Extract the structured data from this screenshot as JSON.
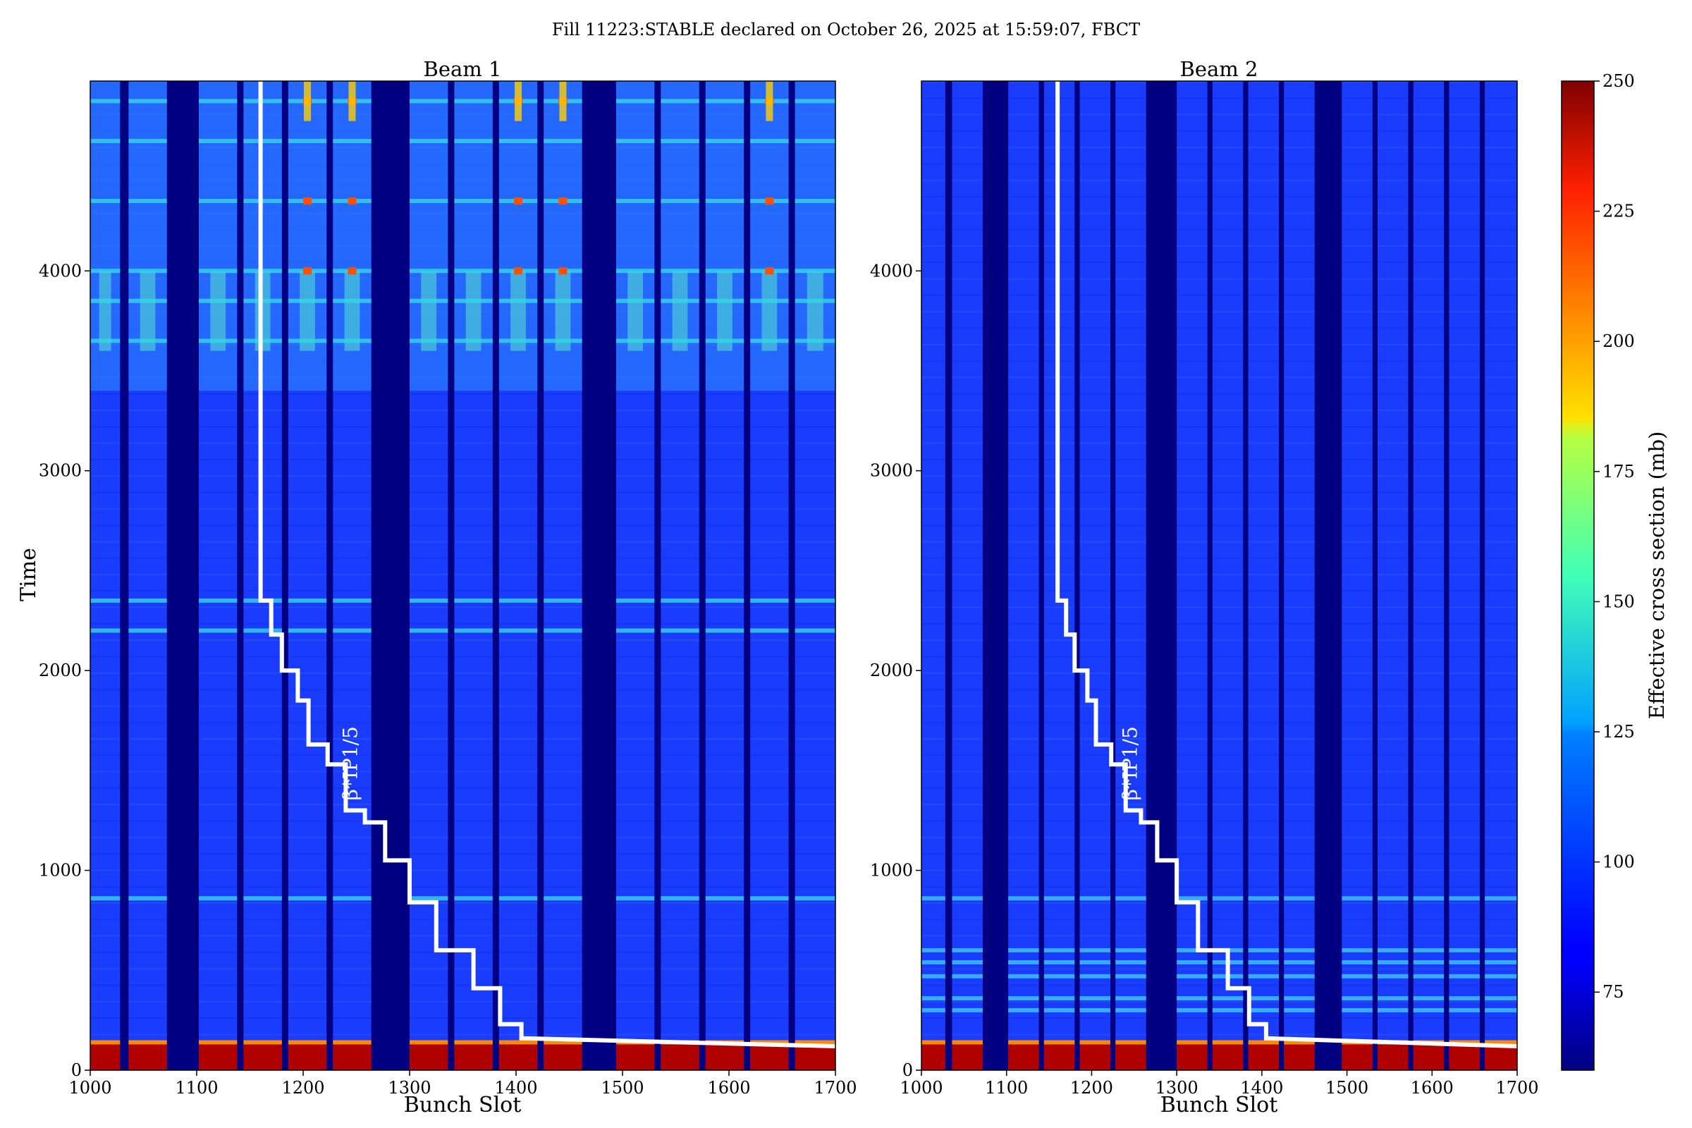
{
  "suptitle": "Fill 11223:STABLE declared on October 26, 2025 at 15:59:07, FBCT",
  "chart_data": [
    {
      "type": "heatmap",
      "title": "Beam 1",
      "xlabel": "Bunch Slot",
      "ylabel": "Time",
      "xlim": [
        1000,
        1700
      ],
      "ylim": [
        0,
        4950
      ],
      "xticks": [
        "1000",
        "1100",
        "1200",
        "1300",
        "1400",
        "1500",
        "1600",
        "1700"
      ],
      "yticks": [
        "0",
        "1000",
        "2000",
        "3000",
        "4000"
      ],
      "filled_trains": [
        [
          1000,
          1028
        ],
        [
          1036,
          1072
        ],
        [
          1102,
          1138
        ],
        [
          1144,
          1180
        ],
        [
          1186,
          1222
        ],
        [
          1228,
          1264
        ],
        [
          1300,
          1336
        ],
        [
          1342,
          1378
        ],
        [
          1384,
          1420
        ],
        [
          1426,
          1462
        ],
        [
          1494,
          1530
        ],
        [
          1536,
          1572
        ],
        [
          1578,
          1614
        ],
        [
          1620,
          1656
        ],
        [
          1662,
          1700
        ]
      ],
      "bright_bands": [
        860,
        2200,
        2350,
        3650,
        3850,
        4000,
        4350,
        4650,
        4850
      ],
      "hot_trains": [
        1186,
        1228,
        1384,
        1426,
        1620
      ],
      "annotation": "β*IP1/5",
      "beta_curve": {
        "x": [
          1160,
          1160,
          1170,
          1170,
          1180,
          1180,
          1195,
          1195,
          1205,
          1205,
          1223,
          1223,
          1240,
          1240,
          1258,
          1258,
          1277,
          1277,
          1300,
          1300,
          1325,
          1325,
          1360,
          1360,
          1385,
          1385,
          1405,
          1405,
          1700
        ],
        "y": [
          4950,
          2350,
          2350,
          2180,
          2180,
          2000,
          2000,
          1850,
          1850,
          1630,
          1630,
          1530,
          1530,
          1300,
          1300,
          1240,
          1240,
          1050,
          1050,
          840,
          840,
          600,
          600,
          410,
          410,
          230,
          230,
          160,
          120
        ]
      }
    },
    {
      "type": "heatmap",
      "title": "Beam 2",
      "xlabel": "Bunch Slot",
      "ylabel": "",
      "xlim": [
        1000,
        1700
      ],
      "ylim": [
        0,
        4950
      ],
      "xticks": [
        "1000",
        "1100",
        "1200",
        "1300",
        "1400",
        "1500",
        "1600",
        "1700"
      ],
      "yticks": [
        "0",
        "1000",
        "2000",
        "3000",
        "4000"
      ],
      "filled_trains": [
        [
          1000,
          1028
        ],
        [
          1036,
          1072
        ],
        [
          1102,
          1138
        ],
        [
          1144,
          1180
        ],
        [
          1186,
          1222
        ],
        [
          1228,
          1264
        ],
        [
          1300,
          1336
        ],
        [
          1342,
          1378
        ],
        [
          1384,
          1420
        ],
        [
          1426,
          1462
        ],
        [
          1494,
          1530
        ],
        [
          1536,
          1572
        ],
        [
          1578,
          1614
        ],
        [
          1620,
          1656
        ],
        [
          1662,
          1700
        ]
      ],
      "bright_bands": [
        860,
        600,
        540,
        470,
        360,
        300
      ],
      "hot_trains": [],
      "annotation": "β*IP1/5",
      "beta_curve": {
        "x": [
          1160,
          1160,
          1170,
          1170,
          1180,
          1180,
          1195,
          1195,
          1205,
          1205,
          1223,
          1223,
          1240,
          1240,
          1258,
          1258,
          1277,
          1277,
          1300,
          1300,
          1325,
          1325,
          1360,
          1360,
          1385,
          1385,
          1405,
          1405,
          1700
        ],
        "y": [
          4950,
          2350,
          2350,
          2180,
          2180,
          2000,
          2000,
          1850,
          1850,
          1630,
          1630,
          1530,
          1530,
          1300,
          1300,
          1240,
          1240,
          1050,
          1050,
          840,
          840,
          600,
          600,
          410,
          410,
          230,
          230,
          160,
          120
        ]
      }
    }
  ],
  "colorbar": {
    "label": "Effective cross section (mb)",
    "min": 60,
    "max": 250,
    "ticks": [
      "75",
      "100",
      "125",
      "150",
      "175",
      "200",
      "225",
      "250"
    ],
    "colormap": "jet"
  },
  "colors": {
    "background": "#000080",
    "base": "#1a3cff",
    "curve": "#ffffff"
  }
}
